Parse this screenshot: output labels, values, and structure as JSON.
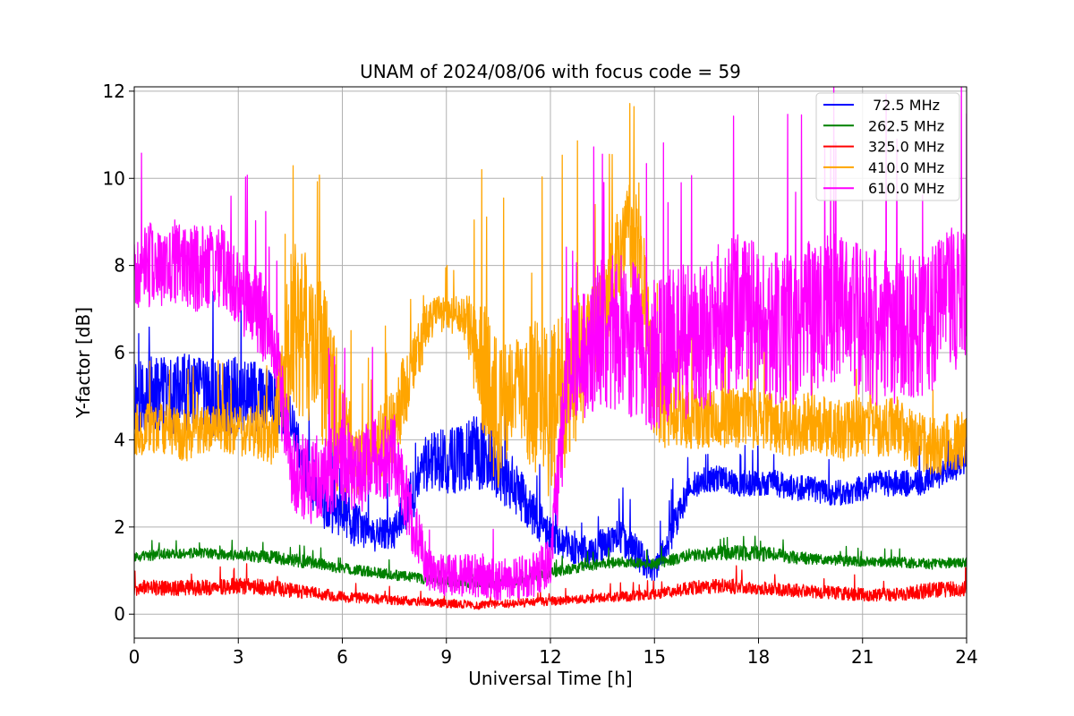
{
  "chart_data": {
    "type": "line",
    "title": "UNAM of 2024/08/06 with focus code = 59",
    "xlabel": "Universal Time [h]",
    "ylabel": "Y-factor [dB]",
    "xlim": [
      0,
      24
    ],
    "ylim": [
      -0.55,
      12.1
    ],
    "xticks": [
      0,
      3,
      6,
      9,
      12,
      15,
      18,
      21,
      24
    ],
    "yticks": [
      0,
      2,
      4,
      6,
      8,
      10,
      12
    ],
    "grid": true,
    "legend_position": "top-right",
    "series": [
      {
        "name": " 72.5 MHz",
        "color": "#0000ff",
        "x": [
          0,
          0.5,
          1,
          1.5,
          2,
          2.5,
          3,
          3.5,
          4,
          4.5,
          5,
          5.5,
          6,
          6.5,
          7,
          7.5,
          8,
          8.5,
          9,
          9.5,
          10,
          10.5,
          11,
          11.5,
          12,
          12.5,
          13,
          13.5,
          14,
          14.5,
          15,
          15.5,
          16,
          16.5,
          17,
          17.5,
          18,
          18.5,
          19,
          19.5,
          20,
          20.5,
          21,
          21.5,
          22,
          22.5,
          23,
          23.5,
          24
        ],
        "center": [
          5.1,
          5.0,
          5.0,
          5.1,
          5.0,
          4.9,
          5.1,
          5.0,
          4.9,
          4.4,
          3.2,
          2.5,
          2.2,
          2.0,
          1.8,
          1.9,
          2.7,
          3.6,
          3.5,
          3.6,
          3.8,
          3.3,
          2.9,
          2.3,
          1.8,
          1.6,
          1.4,
          1.6,
          1.8,
          1.4,
          1.0,
          1.9,
          2.9,
          3.1,
          3.1,
          3.0,
          3.0,
          3.0,
          2.9,
          2.9,
          2.8,
          2.8,
          2.9,
          3.0,
          3.0,
          3.0,
          3.1,
          3.3,
          3.5
        ],
        "amplitude": [
          0.9,
          0.9,
          0.9,
          0.9,
          0.9,
          0.9,
          0.9,
          0.9,
          0.6,
          0.6,
          0.6,
          0.6,
          0.5,
          0.5,
          0.4,
          0.4,
          0.6,
          0.7,
          0.8,
          0.8,
          1.0,
          0.8,
          0.6,
          0.5,
          0.4,
          0.4,
          0.4,
          0.4,
          0.4,
          0.4,
          0.3,
          0.4,
          0.3,
          0.3,
          0.3,
          0.3,
          0.3,
          0.3,
          0.3,
          0.3,
          0.3,
          0.3,
          0.3,
          0.3,
          0.3,
          0.3,
          0.3,
          0.3,
          0.3
        ]
      },
      {
        "name": "262.5 MHz",
        "color": "#008000",
        "x": [
          0,
          1,
          2,
          3,
          4,
          5,
          6,
          7,
          8,
          9,
          10,
          11,
          12,
          13,
          14,
          15,
          16,
          17,
          18,
          19,
          20,
          21,
          22,
          23,
          24
        ],
        "center": [
          1.3,
          1.4,
          1.4,
          1.35,
          1.3,
          1.2,
          1.05,
          0.95,
          0.85,
          0.75,
          0.7,
          0.75,
          0.95,
          1.1,
          1.2,
          1.15,
          1.35,
          1.4,
          1.4,
          1.3,
          1.25,
          1.2,
          1.2,
          1.15,
          1.2
        ],
        "amplitude": [
          0.12,
          0.12,
          0.12,
          0.12,
          0.15,
          0.15,
          0.12,
          0.12,
          0.12,
          0.12,
          0.1,
          0.1,
          0.12,
          0.12,
          0.12,
          0.12,
          0.15,
          0.18,
          0.18,
          0.15,
          0.12,
          0.12,
          0.12,
          0.12,
          0.12
        ]
      },
      {
        "name": "325.0 MHz",
        "color": "#ff0000",
        "x": [
          0,
          1,
          2,
          3,
          4,
          5,
          6,
          7,
          8,
          9,
          10,
          11,
          12,
          13,
          14,
          15,
          16,
          17,
          18,
          19,
          20,
          21,
          22,
          23,
          24
        ],
        "center": [
          0.6,
          0.6,
          0.6,
          0.65,
          0.6,
          0.5,
          0.4,
          0.35,
          0.3,
          0.25,
          0.2,
          0.25,
          0.3,
          0.35,
          0.4,
          0.45,
          0.6,
          0.65,
          0.6,
          0.55,
          0.5,
          0.45,
          0.45,
          0.55,
          0.6
        ],
        "amplitude": [
          0.18,
          0.18,
          0.18,
          0.18,
          0.18,
          0.15,
          0.12,
          0.12,
          0.1,
          0.1,
          0.1,
          0.1,
          0.1,
          0.1,
          0.12,
          0.12,
          0.15,
          0.18,
          0.15,
          0.15,
          0.15,
          0.15,
          0.15,
          0.18,
          0.18
        ]
      },
      {
        "name": "410.0 MHz",
        "color": "#ffa500",
        "x": [
          0,
          0.5,
          1,
          1.5,
          2,
          2.5,
          3,
          3.5,
          4,
          4.5,
          5,
          5.5,
          6,
          6.5,
          7,
          7.5,
          8,
          8.5,
          9,
          9.5,
          10,
          10.5,
          11,
          11.5,
          12,
          12.5,
          13,
          13.5,
          14,
          14.5,
          15,
          15.5,
          16,
          16.5,
          17,
          17.5,
          18,
          18.5,
          19,
          19.5,
          20,
          20.5,
          21,
          21.5,
          22,
          22.5,
          23,
          23.5,
          24
        ],
        "center": [
          4.2,
          4.3,
          4.2,
          4.1,
          4.2,
          4.3,
          4.2,
          4.2,
          4.0,
          6.5,
          6.5,
          5.5,
          4.0,
          3.5,
          3.8,
          4.5,
          5.5,
          6.8,
          6.9,
          6.8,
          5.8,
          4.5,
          5.5,
          5.0,
          4.5,
          5.5,
          6.0,
          7.0,
          8.2,
          9.0,
          5.0,
          4.5,
          4.5,
          4.5,
          4.5,
          4.5,
          4.5,
          4.4,
          4.3,
          4.4,
          4.3,
          4.2,
          4.3,
          4.2,
          4.3,
          4.0,
          3.8,
          4.0,
          4.0
        ],
        "amplitude": [
          0.6,
          0.6,
          0.6,
          0.6,
          0.6,
          0.6,
          0.6,
          0.6,
          0.6,
          2.0,
          2.0,
          2.0,
          1.5,
          0.8,
          0.8,
          1.0,
          0.8,
          0.5,
          0.4,
          0.5,
          1.5,
          1.8,
          1.2,
          1.8,
          2.0,
          2.0,
          1.5,
          1.0,
          1.2,
          1.5,
          1.0,
          0.8,
          0.7,
          0.7,
          0.7,
          0.7,
          0.7,
          0.7,
          0.7,
          0.7,
          0.7,
          0.7,
          0.7,
          0.7,
          0.7,
          0.7,
          0.7,
          0.7,
          0.7
        ]
      },
      {
        "name": "610.0 MHz",
        "color": "#ff00ff",
        "x": [
          0,
          0.5,
          1,
          1.5,
          2,
          2.5,
          3,
          3.5,
          4,
          4.5,
          5,
          5.5,
          6,
          6.5,
          7,
          7.5,
          8,
          8.5,
          9,
          9.5,
          10,
          10.5,
          11,
          11.5,
          12,
          12.5,
          13,
          13.5,
          14,
          14.5,
          15,
          15.5,
          16,
          16.5,
          17,
          17.5,
          18,
          18.5,
          19,
          19.5,
          20,
          20.5,
          21,
          21.5,
          22,
          22.5,
          23,
          23.5,
          24
        ],
        "center": [
          7.8,
          8.0,
          8.1,
          8.0,
          7.9,
          8.0,
          7.5,
          7.0,
          6.5,
          3.5,
          3.0,
          3.2,
          3.5,
          3.3,
          3.5,
          3.6,
          2.2,
          1.0,
          0.9,
          0.9,
          0.9,
          0.8,
          0.8,
          0.9,
          1.2,
          5.5,
          6.0,
          6.5,
          6.5,
          6.2,
          6.0,
          6.2,
          6.3,
          6.5,
          6.8,
          7.0,
          6.8,
          6.5,
          6.5,
          6.8,
          7.0,
          7.0,
          6.8,
          6.5,
          6.6,
          6.6,
          6.8,
          7.2,
          7.2
        ],
        "amplitude": [
          1.0,
          1.0,
          1.0,
          1.0,
          1.0,
          1.0,
          1.0,
          1.0,
          1.0,
          1.0,
          1.0,
          1.0,
          1.0,
          1.0,
          1.0,
          1.0,
          0.8,
          0.5,
          0.5,
          0.5,
          0.5,
          0.5,
          0.5,
          0.5,
          0.6,
          1.5,
          1.5,
          1.8,
          1.8,
          1.8,
          1.8,
          1.8,
          1.8,
          1.8,
          1.8,
          1.8,
          1.8,
          1.8,
          1.8,
          1.8,
          1.8,
          1.8,
          1.8,
          1.8,
          1.8,
          1.8,
          1.8,
          1.8,
          1.8
        ]
      }
    ]
  }
}
